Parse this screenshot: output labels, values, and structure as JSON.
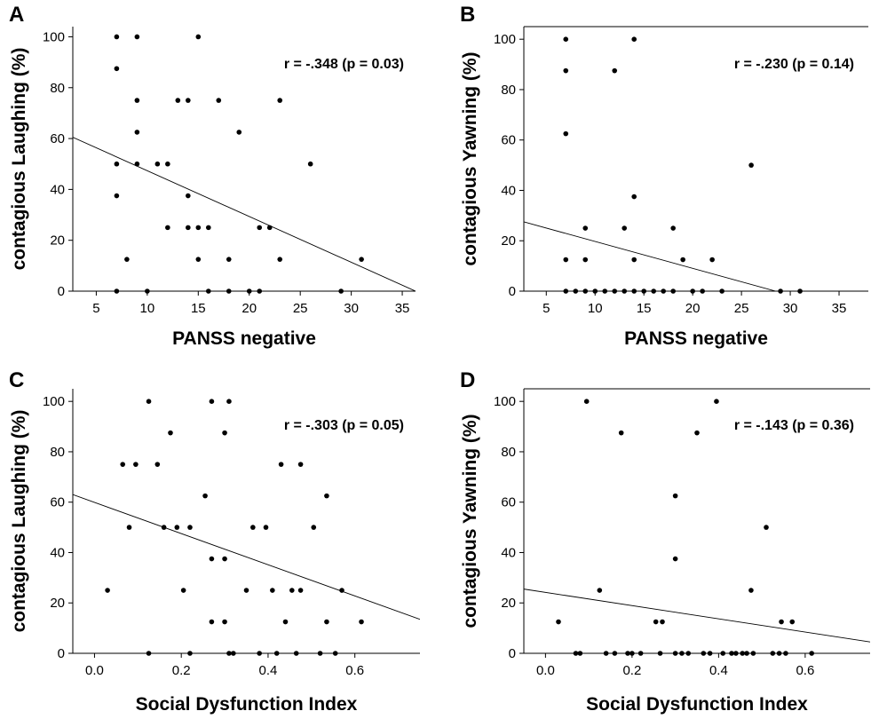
{
  "chart_data": [
    {
      "type": "scatter",
      "panel": "A",
      "annotation": "r = -.348 (p = 0.03)",
      "xlabel": "PANSS negative",
      "ylabel": "contagious Laughing (%)",
      "xlim": [
        2.7,
        36.3
      ],
      "ylim": [
        0,
        104
      ],
      "xticks": [
        5,
        10,
        15,
        20,
        25,
        30,
        35
      ],
      "yticks": [
        0,
        20,
        40,
        60,
        80,
        100
      ],
      "xtick_labels": [
        "5",
        "10",
        "15",
        "20",
        "25",
        "30",
        "35"
      ],
      "ytick_labels": [
        "0",
        "20",
        "40",
        "60",
        "80",
        "100"
      ],
      "grid": false,
      "points": [
        [
          7,
          100
        ],
        [
          7,
          87.5
        ],
        [
          7,
          50
        ],
        [
          7,
          37.5
        ],
        [
          7,
          0
        ],
        [
          8,
          12.5
        ],
        [
          9,
          100
        ],
        [
          9,
          75
        ],
        [
          9,
          62.5
        ],
        [
          9,
          50
        ],
        [
          10,
          0
        ],
        [
          11,
          50
        ],
        [
          12,
          50
        ],
        [
          12,
          25
        ],
        [
          13,
          75
        ],
        [
          14,
          75
        ],
        [
          14,
          37.5
        ],
        [
          14,
          25
        ],
        [
          15,
          100
        ],
        [
          15,
          25
        ],
        [
          15,
          12.5
        ],
        [
          16,
          25
        ],
        [
          16,
          0
        ],
        [
          17,
          75
        ],
        [
          18,
          12.5
        ],
        [
          18,
          0
        ],
        [
          19,
          62.5
        ],
        [
          20,
          0
        ],
        [
          21,
          25
        ],
        [
          21,
          0
        ],
        [
          22,
          25
        ],
        [
          23,
          75
        ],
        [
          23,
          12.5
        ],
        [
          26,
          50
        ],
        [
          29,
          0
        ],
        [
          31,
          12.5
        ]
      ],
      "fit_line": {
        "x": [
          2.7,
          36.3
        ],
        "y": [
          60.5,
          0
        ]
      }
    },
    {
      "type": "scatter",
      "panel": "B",
      "annotation": "r = -.230 (p = 0.14)",
      "xlabel": "PANSS negative",
      "ylabel": "contagious Yawning (%)",
      "xlim": [
        2.7,
        38
      ],
      "ylim": [
        0,
        105
      ],
      "xticks": [
        5,
        10,
        15,
        20,
        25,
        30,
        35
      ],
      "yticks": [
        0,
        20,
        40,
        60,
        80,
        100
      ],
      "xtick_labels": [
        "5",
        "10",
        "15",
        "20",
        "25",
        "30",
        "35"
      ],
      "ytick_labels": [
        "0",
        "20",
        "40",
        "60",
        "80",
        "100"
      ],
      "grid": false,
      "points": [
        [
          7,
          100
        ],
        [
          7,
          87.5
        ],
        [
          7,
          62.5
        ],
        [
          7,
          12.5
        ],
        [
          7,
          0
        ],
        [
          8,
          0
        ],
        [
          9,
          25
        ],
        [
          9,
          12.5
        ],
        [
          9,
          0
        ],
        [
          10,
          0
        ],
        [
          11,
          0
        ],
        [
          12,
          87.5
        ],
        [
          12,
          0
        ],
        [
          13,
          25
        ],
        [
          13,
          0
        ],
        [
          14,
          100
        ],
        [
          14,
          37.5
        ],
        [
          14,
          12.5
        ],
        [
          14,
          0
        ],
        [
          15,
          0
        ],
        [
          16,
          0
        ],
        [
          17,
          0
        ],
        [
          18,
          25
        ],
        [
          18,
          0
        ],
        [
          19,
          12.5
        ],
        [
          20,
          0
        ],
        [
          21,
          0
        ],
        [
          22,
          12.5
        ],
        [
          23,
          0
        ],
        [
          26,
          50
        ],
        [
          29,
          0
        ],
        [
          31,
          0
        ]
      ],
      "fit_line": {
        "x": [
          2.7,
          28.5
        ],
        "y": [
          27.5,
          0
        ]
      }
    },
    {
      "type": "scatter",
      "panel": "C",
      "annotation": "r = -.303 (p = 0.05)",
      "xlabel": "Social Dysfunction Index",
      "ylabel": "contagious Laughing (%)",
      "xlim": [
        -0.05,
        0.75
      ],
      "ylim": [
        0,
        105
      ],
      "xticks": [
        0.0,
        0.2,
        0.4,
        0.6
      ],
      "yticks": [
        0,
        20,
        40,
        60,
        80,
        100
      ],
      "xtick_labels": [
        "0.0",
        "0.2",
        "0.4",
        "0.6"
      ],
      "ytick_labels": [
        "0",
        "20",
        "40",
        "60",
        "80",
        "100"
      ],
      "grid": false,
      "points": [
        [
          0.03,
          25
        ],
        [
          0.065,
          75
        ],
        [
          0.08,
          50
        ],
        [
          0.095,
          75
        ],
        [
          0.125,
          100
        ],
        [
          0.125,
          0
        ],
        [
          0.145,
          75
        ],
        [
          0.16,
          50
        ],
        [
          0.175,
          87.5
        ],
        [
          0.19,
          50
        ],
        [
          0.205,
          25
        ],
        [
          0.22,
          50
        ],
        [
          0.22,
          0
        ],
        [
          0.255,
          62.5
        ],
        [
          0.27,
          100
        ],
        [
          0.27,
          37.5
        ],
        [
          0.27,
          12.5
        ],
        [
          0.3,
          87.5
        ],
        [
          0.3,
          37.5
        ],
        [
          0.3,
          12.5
        ],
        [
          0.31,
          100
        ],
        [
          0.31,
          0
        ],
        [
          0.32,
          0
        ],
        [
          0.35,
          25
        ],
        [
          0.365,
          50
        ],
        [
          0.38,
          0
        ],
        [
          0.395,
          50
        ],
        [
          0.41,
          25
        ],
        [
          0.42,
          0
        ],
        [
          0.43,
          75
        ],
        [
          0.44,
          12.5
        ],
        [
          0.455,
          25
        ],
        [
          0.465,
          0
        ],
        [
          0.475,
          75
        ],
        [
          0.475,
          25
        ],
        [
          0.505,
          50
        ],
        [
          0.52,
          0
        ],
        [
          0.535,
          62.5
        ],
        [
          0.535,
          12.5
        ],
        [
          0.555,
          0
        ],
        [
          0.57,
          25
        ],
        [
          0.615,
          12.5
        ]
      ],
      "fit_line": {
        "x": [
          -0.05,
          0.75
        ],
        "y": [
          63,
          13.5
        ]
      }
    },
    {
      "type": "scatter",
      "panel": "D",
      "annotation": "r = -.143 (p = 0.36)",
      "xlabel": "Social Dysfunction Index",
      "ylabel": "contagious Yawning (%)",
      "xlim": [
        -0.05,
        0.75
      ],
      "ylim": [
        0,
        105
      ],
      "xticks": [
        0.0,
        0.2,
        0.4,
        0.6
      ],
      "yticks": [
        0,
        20,
        40,
        60,
        80,
        100
      ],
      "xtick_labels": [
        "0.0",
        "0.2",
        "0.4",
        "0.6"
      ],
      "ytick_labels": [
        "0",
        "20",
        "40",
        "60",
        "80",
        "100"
      ],
      "grid": false,
      "points": [
        [
          0.03,
          12.5
        ],
        [
          0.07,
          0
        ],
        [
          0.08,
          0
        ],
        [
          0.095,
          100
        ],
        [
          0.125,
          25
        ],
        [
          0.14,
          0
        ],
        [
          0.16,
          0
        ],
        [
          0.175,
          87.5
        ],
        [
          0.19,
          0
        ],
        [
          0.2,
          0
        ],
        [
          0.22,
          0
        ],
        [
          0.255,
          12.5
        ],
        [
          0.265,
          0
        ],
        [
          0.27,
          12.5
        ],
        [
          0.3,
          62.5
        ],
        [
          0.3,
          37.5
        ],
        [
          0.3,
          0
        ],
        [
          0.315,
          0
        ],
        [
          0.33,
          0
        ],
        [
          0.35,
          87.5
        ],
        [
          0.365,
          0
        ],
        [
          0.38,
          0
        ],
        [
          0.395,
          100
        ],
        [
          0.41,
          0
        ],
        [
          0.43,
          0
        ],
        [
          0.44,
          0
        ],
        [
          0.455,
          0
        ],
        [
          0.465,
          0
        ],
        [
          0.475,
          25
        ],
        [
          0.48,
          0
        ],
        [
          0.51,
          50
        ],
        [
          0.525,
          0
        ],
        [
          0.54,
          0
        ],
        [
          0.545,
          12.5
        ],
        [
          0.555,
          0
        ],
        [
          0.57,
          12.5
        ],
        [
          0.615,
          0
        ]
      ],
      "fit_line": {
        "x": [
          -0.05,
          0.75
        ],
        "y": [
          25.5,
          4.5
        ]
      }
    }
  ]
}
